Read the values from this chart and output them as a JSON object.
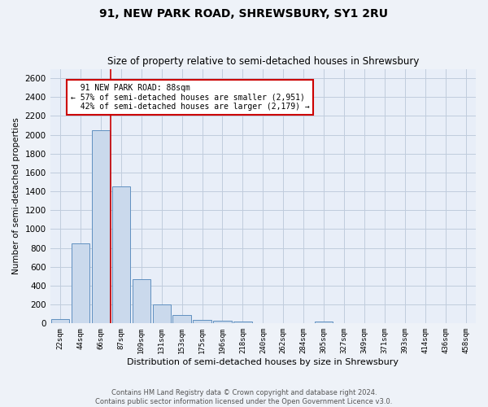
{
  "title1": "91, NEW PARK ROAD, SHREWSBURY, SY1 2RU",
  "title2": "Size of property relative to semi-detached houses in Shrewsbury",
  "xlabel": "Distribution of semi-detached houses by size in Shrewsbury",
  "ylabel": "Number of semi-detached properties",
  "categories": [
    "22sqm",
    "44sqm",
    "66sqm",
    "87sqm",
    "109sqm",
    "131sqm",
    "153sqm",
    "175sqm",
    "196sqm",
    "218sqm",
    "240sqm",
    "262sqm",
    "284sqm",
    "305sqm",
    "327sqm",
    "349sqm",
    "371sqm",
    "393sqm",
    "414sqm",
    "436sqm",
    "458sqm"
  ],
  "values": [
    50,
    850,
    2050,
    1450,
    470,
    200,
    90,
    40,
    30,
    20,
    0,
    0,
    0,
    20,
    0,
    0,
    0,
    0,
    0,
    0,
    0
  ],
  "bar_color": "#cad9ec",
  "bar_edge_color": "#6090c0",
  "vline_color": "#cc0000",
  "annotation_box_edge": "#cc0000",
  "ylim": [
    0,
    2700
  ],
  "yticks": [
    0,
    200,
    400,
    600,
    800,
    1000,
    1200,
    1400,
    1600,
    1800,
    2000,
    2200,
    2400,
    2600
  ],
  "grid_color": "#c0ccdd",
  "bg_color": "#e8eef8",
  "fig_bg_color": "#eef2f8",
  "property_label": "91 NEW PARK ROAD: 88sqm",
  "pct_smaller": 57,
  "pct_smaller_n": 2951,
  "pct_larger": 42,
  "pct_larger_n": 2179,
  "footer": "Contains HM Land Registry data © Crown copyright and database right 2024.\nContains public sector information licensed under the Open Government Licence v3.0."
}
